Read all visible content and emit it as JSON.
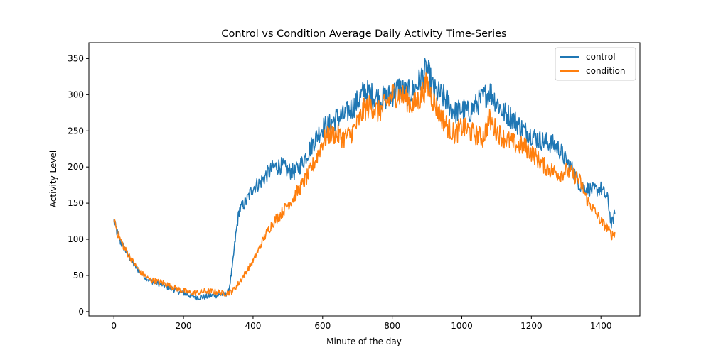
{
  "chart_data": {
    "type": "line",
    "title": "Control vs Condition Average Daily Activity Time-Series",
    "xlabel": "Minute of the day",
    "ylabel": "Activity Level",
    "xlim": [
      -72,
      1512
    ],
    "ylim": [
      -6,
      372
    ],
    "xticks": [
      0,
      200,
      400,
      600,
      800,
      1000,
      1200,
      1400
    ],
    "yticks": [
      0,
      50,
      100,
      150,
      200,
      250,
      300,
      350
    ],
    "grid": false,
    "legend_position": "top-right",
    "series": [
      {
        "name": "control",
        "color": "#1f77b4",
        "x": [
          0,
          10,
          20,
          30,
          40,
          60,
          80,
          100,
          120,
          140,
          160,
          180,
          200,
          220,
          240,
          260,
          280,
          300,
          320,
          330,
          340,
          350,
          360,
          380,
          400,
          420,
          440,
          460,
          480,
          500,
          520,
          540,
          560,
          580,
          600,
          620,
          640,
          660,
          680,
          700,
          720,
          740,
          760,
          780,
          800,
          820,
          840,
          860,
          880,
          900,
          920,
          940,
          960,
          980,
          1000,
          1020,
          1040,
          1060,
          1080,
          1100,
          1120,
          1140,
          1160,
          1180,
          1200,
          1220,
          1240,
          1260,
          1280,
          1300,
          1320,
          1340,
          1360,
          1380,
          1400,
          1420,
          1430,
          1440
        ],
        "y": [
          125,
          108,
          95,
          88,
          78,
          63,
          52,
          44,
          40,
          37,
          33,
          29,
          26,
          22,
          20,
          20,
          22,
          23,
          24,
          28,
          60,
          105,
          140,
          152,
          172,
          178,
          190,
          200,
          202,
          195,
          193,
          205,
          222,
          240,
          255,
          258,
          268,
          270,
          280,
          290,
          305,
          300,
          295,
          295,
          300,
          310,
          302,
          305,
          320,
          335,
          305,
          300,
          290,
          275,
          280,
          275,
          285,
          295,
          305,
          290,
          275,
          270,
          260,
          250,
          245,
          238,
          235,
          232,
          225,
          208,
          195,
          175,
          170,
          168,
          170,
          155,
          120,
          135
        ]
      },
      {
        "name": "condition",
        "color": "#ff7f0e",
        "x": [
          0,
          10,
          20,
          30,
          40,
          60,
          80,
          100,
          120,
          140,
          160,
          180,
          200,
          220,
          240,
          260,
          280,
          300,
          320,
          340,
          360,
          380,
          400,
          420,
          440,
          460,
          480,
          500,
          520,
          540,
          560,
          580,
          600,
          620,
          640,
          660,
          680,
          700,
          720,
          740,
          760,
          780,
          800,
          820,
          840,
          860,
          880,
          900,
          920,
          940,
          960,
          980,
          1000,
          1020,
          1040,
          1060,
          1080,
          1100,
          1120,
          1140,
          1160,
          1180,
          1200,
          1220,
          1240,
          1260,
          1280,
          1300,
          1320,
          1340,
          1360,
          1380,
          1400,
          1420,
          1430,
          1440
        ],
        "y": [
          130,
          110,
          98,
          88,
          80,
          65,
          53,
          45,
          42,
          40,
          36,
          32,
          29,
          26,
          26,
          28,
          28,
          27,
          25,
          28,
          40,
          55,
          70,
          90,
          110,
          125,
          135,
          148,
          160,
          175,
          190,
          210,
          235,
          245,
          245,
          240,
          245,
          260,
          280,
          285,
          275,
          285,
          300,
          300,
          295,
          285,
          295,
          315,
          290,
          270,
          255,
          245,
          255,
          250,
          245,
          240,
          265,
          250,
          240,
          235,
          230,
          228,
          220,
          210,
          200,
          195,
          190,
          195,
          190,
          180,
          155,
          140,
          125,
          115,
          105,
          110
        ]
      }
    ]
  }
}
